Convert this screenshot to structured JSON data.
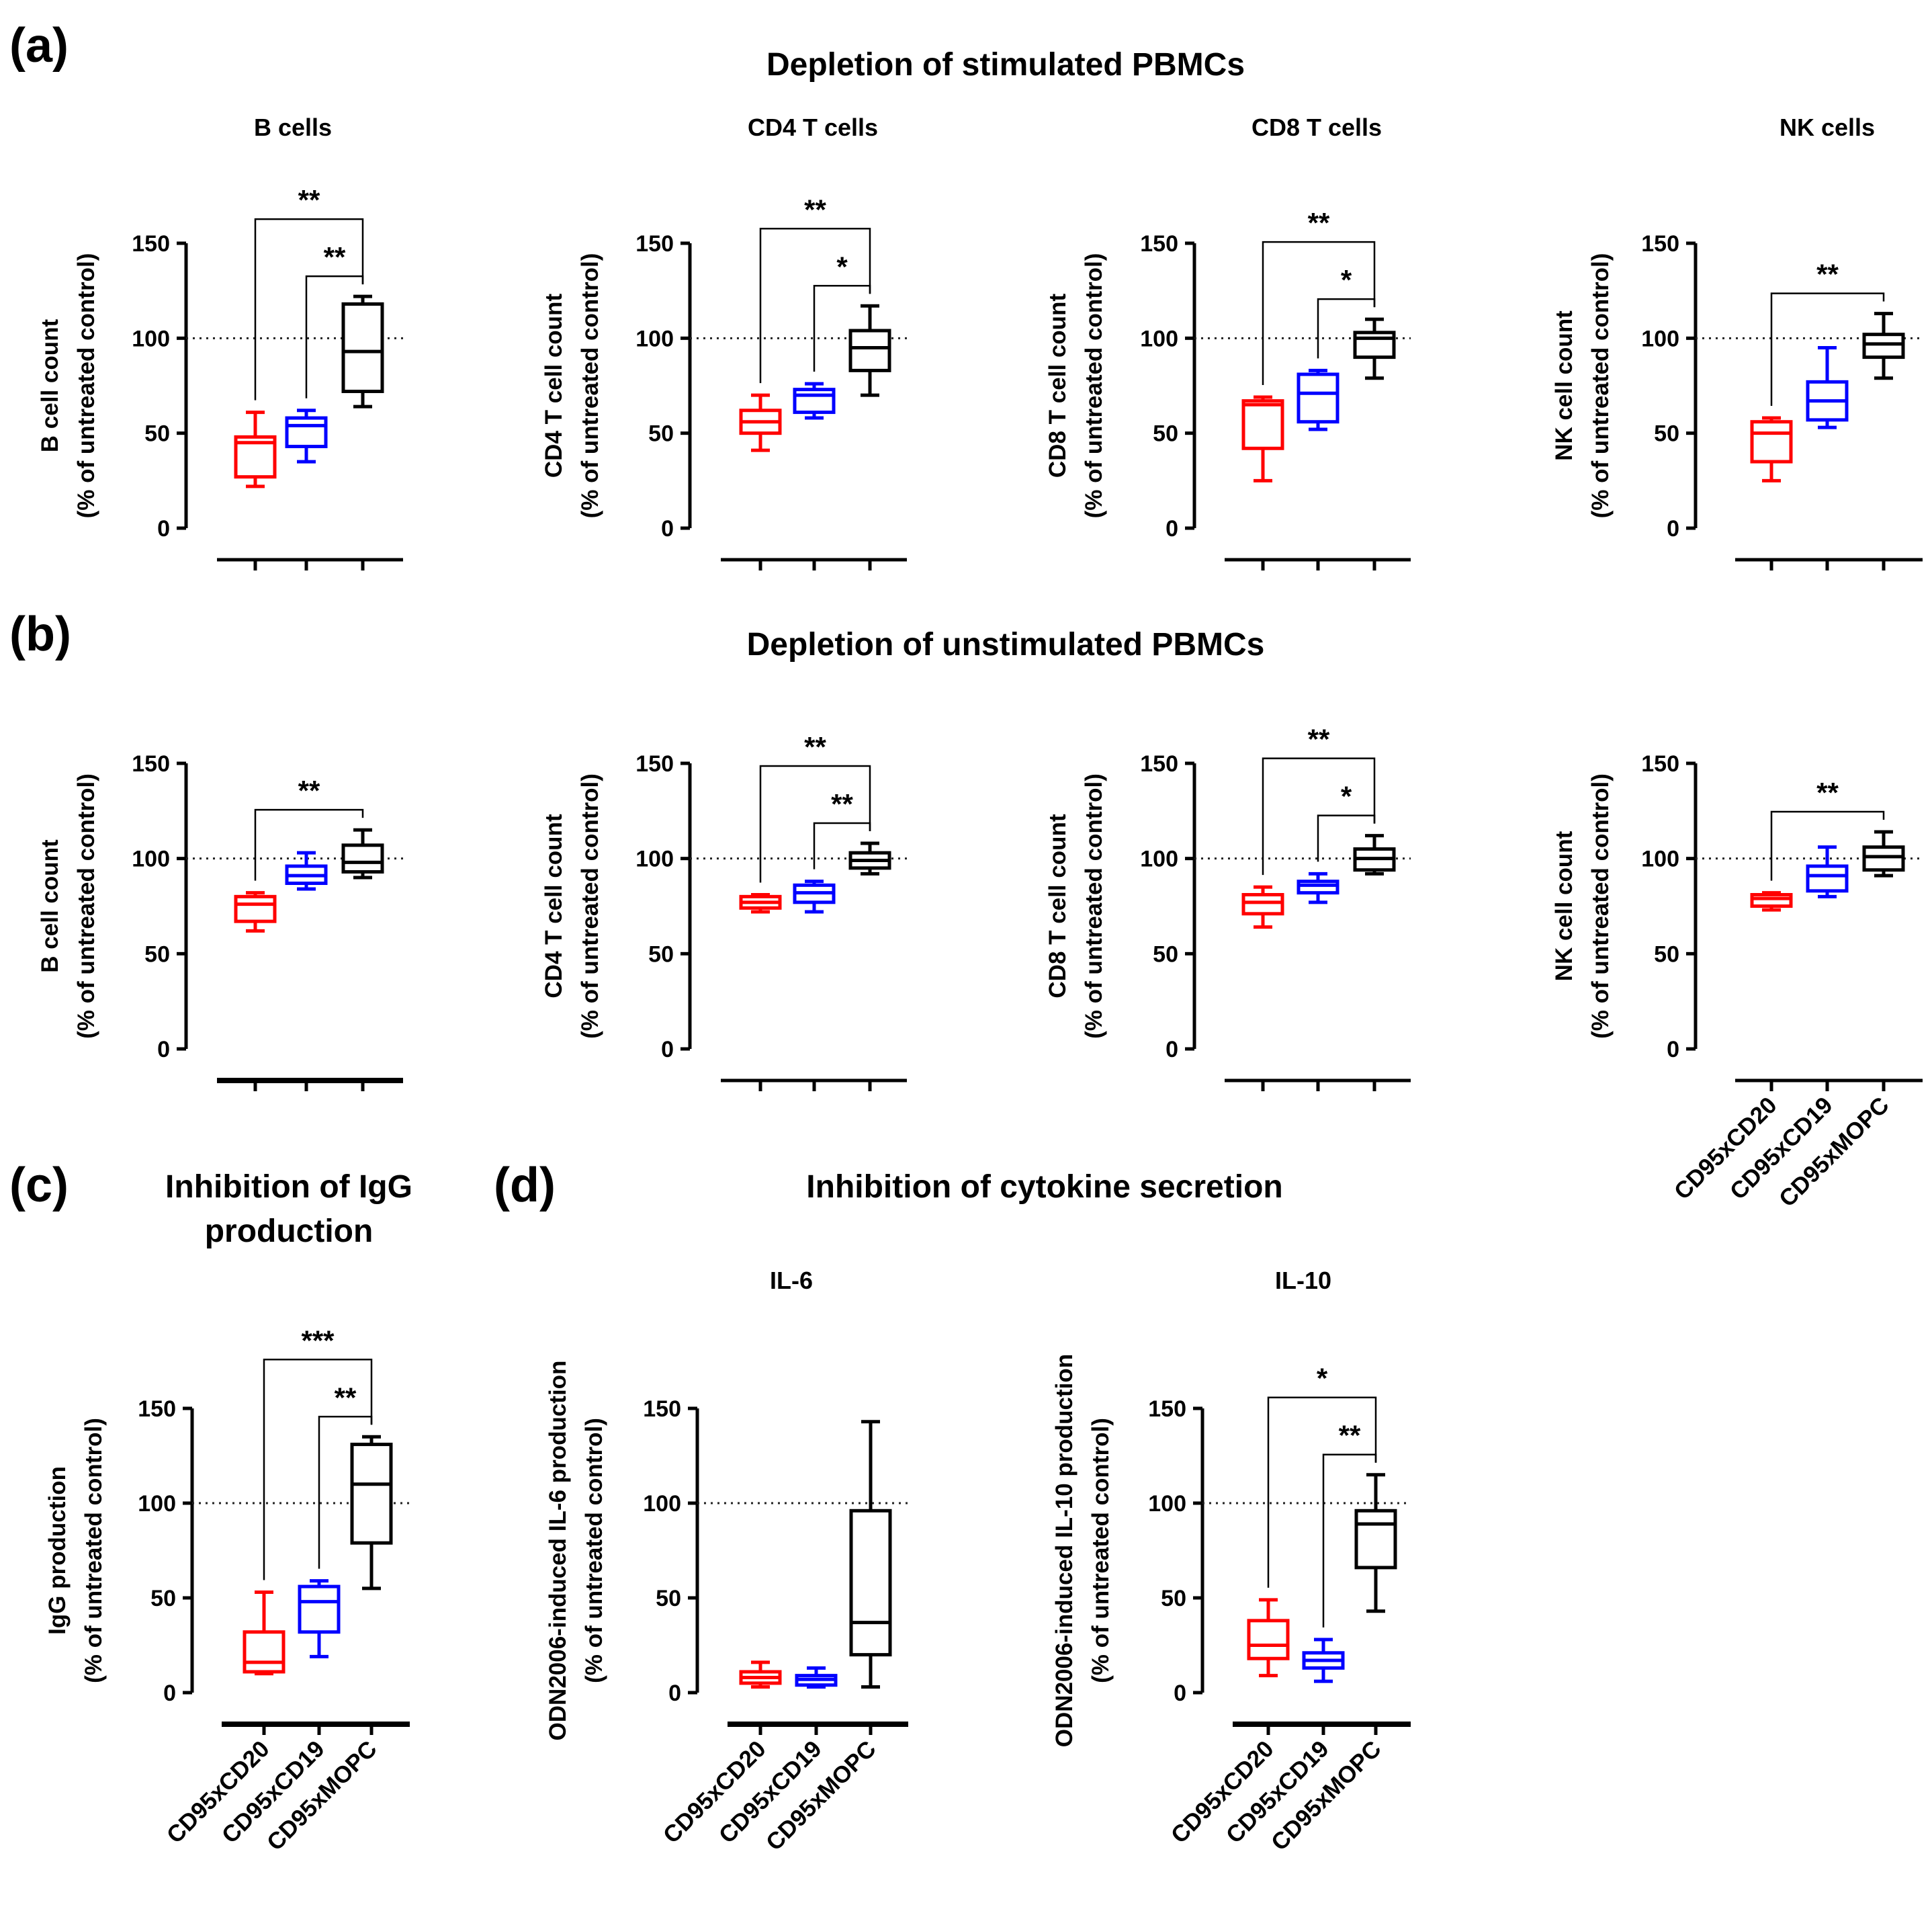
{
  "panels": {
    "a": {
      "letter": "(a)",
      "title": "Depletion of stimulated PBMCs"
    },
    "b": {
      "letter": "(b)",
      "title": "Depletion of unstimulated PBMCs"
    },
    "c": {
      "letter": "(c)",
      "title_line1": "Inhibition of IgG",
      "title_line2": "production"
    },
    "d": {
      "letter": "(d)",
      "title": "Inhibition of cytokine secretion"
    }
  },
  "colors": {
    "CD95xCD20": "#ff0000",
    "CD95xCD19": "#0000ff",
    "CD95xMOPC": "#000000"
  },
  "chart_data": [
    {
      "id": "a-b",
      "type": "box",
      "title": "B cells",
      "ylabel_line1": "B cell count",
      "ylabel_line2": "(%  of untreated control)",
      "ylim": [
        0,
        150
      ],
      "yticks": [
        0,
        50,
        100,
        150
      ],
      "reference_line": 100,
      "show_category_labels": false,
      "categories": [
        "CD95xCD20",
        "CD95xCD19",
        "CD95xMOPC"
      ],
      "boxes": [
        {
          "min": 22,
          "q1": 27,
          "median": 45,
          "q3": 48,
          "max": 61
        },
        {
          "min": 35,
          "q1": 43,
          "median": 54,
          "q3": 58,
          "max": 62
        },
        {
          "min": 64,
          "q1": 72,
          "median": 93,
          "q3": 118,
          "max": 122
        }
      ],
      "significance": [
        {
          "from": 0,
          "to": 2,
          "label": "**"
        },
        {
          "from": 1,
          "to": 2,
          "label": "**"
        }
      ]
    },
    {
      "id": "a-cd4",
      "type": "box",
      "title": "CD4  T cells",
      "ylabel_line1": "CD4 T cell count",
      "ylabel_line2": "(%  of untreated control)",
      "ylim": [
        0,
        150
      ],
      "yticks": [
        0,
        50,
        100,
        150
      ],
      "reference_line": 100,
      "show_category_labels": false,
      "categories": [
        "CD95xCD20",
        "CD95xCD19",
        "CD95xMOPC"
      ],
      "boxes": [
        {
          "min": 41,
          "q1": 50,
          "median": 56,
          "q3": 62,
          "max": 70
        },
        {
          "min": 58,
          "q1": 61,
          "median": 70,
          "q3": 73,
          "max": 76
        },
        {
          "min": 70,
          "q1": 83,
          "median": 95,
          "q3": 104,
          "max": 117
        }
      ],
      "significance": [
        {
          "from": 0,
          "to": 2,
          "label": "**"
        },
        {
          "from": 1,
          "to": 2,
          "label": "*"
        }
      ]
    },
    {
      "id": "a-cd8",
      "type": "box",
      "title": "CD8  T cells",
      "ylabel_line1": "CD8 T cell count",
      "ylabel_line2": "(%  of untreated control)",
      "ylim": [
        0,
        150
      ],
      "yticks": [
        0,
        50,
        100,
        150
      ],
      "reference_line": 100,
      "show_category_labels": false,
      "categories": [
        "CD95xCD20",
        "CD95xCD19",
        "CD95xMOPC"
      ],
      "boxes": [
        {
          "min": 25,
          "q1": 42,
          "median": 65,
          "q3": 67,
          "max": 69
        },
        {
          "min": 52,
          "q1": 56,
          "median": 71,
          "q3": 81,
          "max": 83
        },
        {
          "min": 79,
          "q1": 90,
          "median": 100,
          "q3": 103,
          "max": 110
        }
      ],
      "significance": [
        {
          "from": 0,
          "to": 2,
          "label": "**"
        },
        {
          "from": 1,
          "to": 2,
          "label": "*"
        }
      ]
    },
    {
      "id": "a-nk",
      "type": "box",
      "title": "NK cells",
      "ylabel_line1": "NK cell count",
      "ylabel_line2": "(%  of untreated control)",
      "ylim": [
        0,
        150
      ],
      "yticks": [
        0,
        50,
        100,
        150
      ],
      "reference_line": 100,
      "show_category_labels": false,
      "categories": [
        "CD95xCD20",
        "CD95xCD19",
        "CD95xMOPC"
      ],
      "boxes": [
        {
          "min": 25,
          "q1": 35,
          "median": 50,
          "q3": 56,
          "max": 58
        },
        {
          "min": 53,
          "q1": 57,
          "median": 67,
          "q3": 77,
          "max": 95
        },
        {
          "min": 79,
          "q1": 90,
          "median": 97,
          "q3": 102,
          "max": 113
        }
      ],
      "significance": [
        {
          "from": 0,
          "to": 2,
          "label": "**"
        }
      ]
    },
    {
      "id": "b-b",
      "type": "box",
      "title": "",
      "ylabel_line1": "B cell count",
      "ylabel_line2": "(%  of untreated control)",
      "ylim": [
        0,
        150
      ],
      "yticks": [
        0,
        50,
        100,
        150
      ],
      "reference_line": 100,
      "show_category_labels": false,
      "categories": [
        "CD95xCD20",
        "CD95xCD19",
        "CD95xMOPC"
      ],
      "boxes": [
        {
          "min": 62,
          "q1": 67,
          "median": 76,
          "q3": 80,
          "max": 82
        },
        {
          "min": 84,
          "q1": 87,
          "median": 91,
          "q3": 96,
          "max": 103
        },
        {
          "min": 90,
          "q1": 93,
          "median": 98,
          "q3": 107,
          "max": 115
        }
      ],
      "significance": [
        {
          "from": 0,
          "to": 2,
          "label": "**"
        }
      ]
    },
    {
      "id": "b-cd4",
      "type": "box",
      "title": "",
      "ylabel_line1": "CD4 T cell count",
      "ylabel_line2": "(%  of untreated control)",
      "ylim": [
        0,
        150
      ],
      "yticks": [
        0,
        50,
        100,
        150
      ],
      "reference_line": 100,
      "show_category_labels": false,
      "categories": [
        "CD95xCD20",
        "CD95xCD19",
        "CD95xMOPC"
      ],
      "boxes": [
        {
          "min": 72,
          "q1": 74,
          "median": 77,
          "q3": 80,
          "max": 81
        },
        {
          "min": 72,
          "q1": 77,
          "median": 82,
          "q3": 86,
          "max": 88
        },
        {
          "min": 92,
          "q1": 95,
          "median": 99,
          "q3": 103,
          "max": 108
        }
      ],
      "significance": [
        {
          "from": 0,
          "to": 2,
          "label": "**"
        },
        {
          "from": 1,
          "to": 2,
          "label": "**"
        }
      ]
    },
    {
      "id": "b-cd8",
      "type": "box",
      "title": "",
      "ylabel_line1": "CD8 T cell count",
      "ylabel_line2": "(%  of untreated control)",
      "ylim": [
        0,
        150
      ],
      "yticks": [
        0,
        50,
        100,
        150
      ],
      "reference_line": 100,
      "show_category_labels": false,
      "categories": [
        "CD95xCD20",
        "CD95xCD19",
        "CD95xMOPC"
      ],
      "boxes": [
        {
          "min": 64,
          "q1": 71,
          "median": 77,
          "q3": 81,
          "max": 85
        },
        {
          "min": 77,
          "q1": 82,
          "median": 86,
          "q3": 88,
          "max": 92
        },
        {
          "min": 92,
          "q1": 94,
          "median": 100,
          "q3": 105,
          "max": 112
        }
      ],
      "significance": [
        {
          "from": 0,
          "to": 2,
          "label": "**"
        },
        {
          "from": 1,
          "to": 2,
          "label": "*"
        }
      ]
    },
    {
      "id": "b-nk",
      "type": "box",
      "title": "",
      "ylabel_line1": "NK cell count",
      "ylabel_line2": "(%  of untreated control)",
      "ylim": [
        0,
        150
      ],
      "yticks": [
        0,
        50,
        100,
        150
      ],
      "reference_line": 100,
      "show_category_labels": true,
      "categories": [
        "CD95xCD20",
        "CD95xCD19",
        "CD95xMOPC"
      ],
      "boxes": [
        {
          "min": 73,
          "q1": 75,
          "median": 79,
          "q3": 81,
          "max": 82
        },
        {
          "min": 80,
          "q1": 83,
          "median": 91,
          "q3": 96,
          "max": 106
        },
        {
          "min": 91,
          "q1": 94,
          "median": 101,
          "q3": 106,
          "max": 114
        }
      ],
      "significance": [
        {
          "from": 0,
          "to": 2,
          "label": "**"
        }
      ]
    },
    {
      "id": "c-igg",
      "type": "box",
      "title": "",
      "ylabel_line1": "IgG production",
      "ylabel_line2": "(%  of untreated control)",
      "ylim": [
        0,
        150
      ],
      "yticks": [
        0,
        50,
        100,
        150
      ],
      "reference_line": 100,
      "show_category_labels": true,
      "categories": [
        "CD95xCD20",
        "CD95xCD19",
        "CD95xMOPC"
      ],
      "boxes": [
        {
          "min": 10,
          "q1": 11,
          "median": 16,
          "q3": 32,
          "max": 53
        },
        {
          "min": 19,
          "q1": 32,
          "median": 48,
          "q3": 56,
          "max": 59
        },
        {
          "min": 55,
          "q1": 79,
          "median": 110,
          "q3": 131,
          "max": 135
        }
      ],
      "significance": [
        {
          "from": 0,
          "to": 2,
          "label": "***"
        },
        {
          "from": 1,
          "to": 2,
          "label": "**"
        }
      ]
    },
    {
      "id": "d-il6",
      "type": "box",
      "title": "IL-6",
      "ylabel_line1": "ODN2006-induced IL-6 production",
      "ylabel_line2": "(%  of untreated control)",
      "ylim": [
        0,
        150
      ],
      "yticks": [
        0,
        50,
        100,
        150
      ],
      "reference_line": 100,
      "show_category_labels": true,
      "categories": [
        "CD95xCD20",
        "CD95xCD19",
        "CD95xMOPC"
      ],
      "boxes": [
        {
          "min": 3,
          "q1": 5,
          "median": 8,
          "q3": 11,
          "max": 16
        },
        {
          "min": 3,
          "q1": 4,
          "median": 7,
          "q3": 9,
          "max": 13
        },
        {
          "min": 3,
          "q1": 20,
          "median": 37,
          "q3": 96,
          "max": 143
        }
      ],
      "significance": []
    },
    {
      "id": "d-il10",
      "type": "box",
      "title": "IL-10",
      "ylabel_line1": "ODN2006-induced IL-10 production",
      "ylabel_line2": "(%  of untreated control)",
      "ylim": [
        0,
        150
      ],
      "yticks": [
        0,
        50,
        100,
        150
      ],
      "reference_line": 100,
      "show_category_labels": true,
      "categories": [
        "CD95xCD20",
        "CD95xCD19",
        "CD95xMOPC"
      ],
      "boxes": [
        {
          "min": 9,
          "q1": 18,
          "median": 25,
          "q3": 38,
          "max": 49
        },
        {
          "min": 6,
          "q1": 13,
          "median": 17,
          "q3": 21,
          "max": 28
        },
        {
          "min": 43,
          "q1": 66,
          "median": 89,
          "q3": 96,
          "max": 115
        }
      ],
      "significance": [
        {
          "from": 0,
          "to": 2,
          "label": "*"
        },
        {
          "from": 1,
          "to": 2,
          "label": "**"
        }
      ]
    }
  ]
}
